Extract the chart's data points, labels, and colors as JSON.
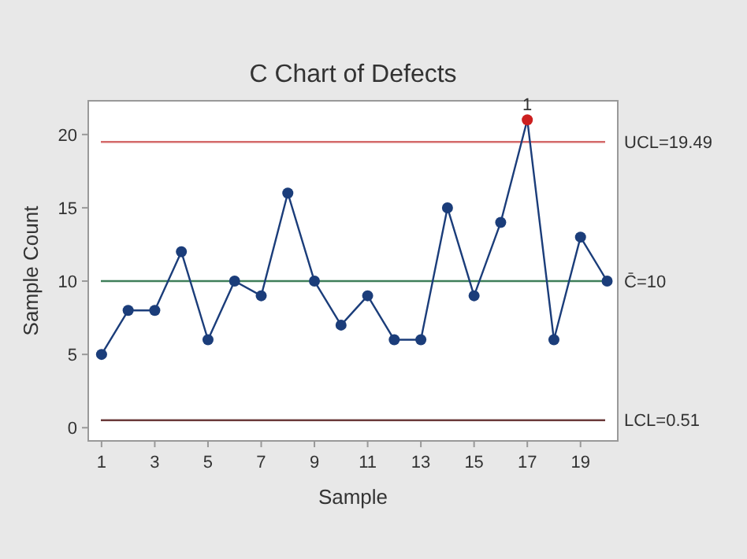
{
  "chart_data": {
    "type": "line",
    "title": "C Chart of Defects",
    "xlabel": "Sample",
    "ylabel": "Sample Count",
    "x": [
      1,
      2,
      3,
      4,
      5,
      6,
      7,
      8,
      9,
      10,
      11,
      12,
      13,
      14,
      15,
      16,
      17,
      18,
      19,
      20
    ],
    "series": [
      {
        "color": "#1b3d7a",
        "colors": [
          "#1b3d7a",
          "#1b3d7a",
          "#1b3d7a",
          "#1b3d7a",
          "#1b3d7a",
          "#1b3d7a",
          "#1b3d7a",
          "#1b3d7a",
          "#1b3d7a",
          "#1b3d7a",
          "#1b3d7a",
          "#1b3d7a",
          "#1b3d7a",
          "#1b3d7a",
          "#1b3d7a",
          "#1b3d7a",
          "#cc1f1f",
          "#1b3d7a",
          "#1b3d7a",
          "#1b3d7a"
        ],
        "values": [
          5,
          8,
          8,
          12,
          6,
          10,
          9,
          16,
          10,
          7,
          9,
          6,
          6,
          15,
          9,
          14,
          21,
          6,
          13,
          10
        ]
      }
    ],
    "xlim": [
      0.5,
      20.4
    ],
    "xticks": [
      1,
      3,
      5,
      7,
      9,
      11,
      13,
      15,
      17,
      19
    ],
    "ylim": [
      -0.9,
      22.3
    ],
    "yticks": [
      0,
      5,
      10,
      15,
      20
    ],
    "ref_lines": [
      {
        "axis": "y",
        "value": 19.49,
        "label": "UCL=19.49",
        "color": "#d46a6a"
      },
      {
        "axis": "y",
        "value": 10,
        "label": "C̄=10",
        "color": "#3f7f5a"
      },
      {
        "axis": "y",
        "value": 0.51,
        "label": "LCL=0.51",
        "color": "#6b3a3a"
      }
    ],
    "annotations": [
      {
        "text": "1",
        "x": 17,
        "y": 21
      }
    ],
    "marker": "circle"
  }
}
